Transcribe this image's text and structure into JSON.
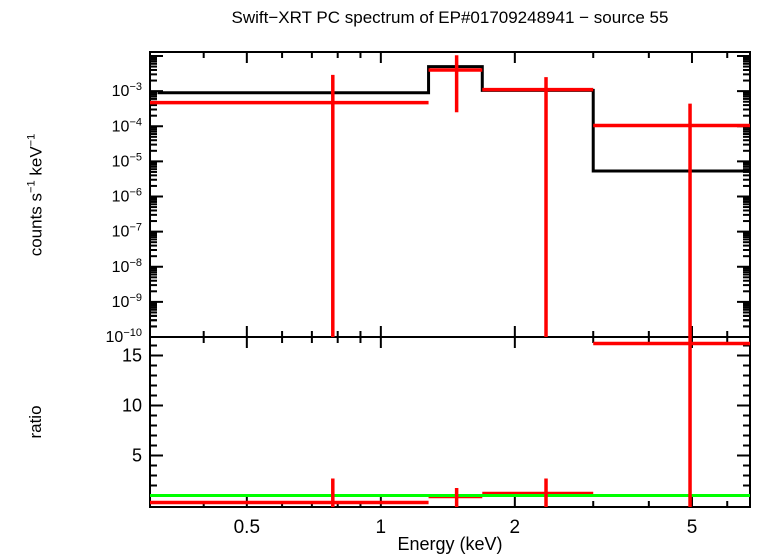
{
  "title": "Swift−XRT PC spectrum of EP#01709248941 − source 55",
  "colors": {
    "background": "#ffffff",
    "frame": "#000000",
    "model": "#000000",
    "data": "#ff0000",
    "reference": "#00ff00"
  },
  "axes": {
    "x_label": "Energy (keV)",
    "y_top_label": {
      "prefix": "counts s",
      "sup1": "−1",
      "mid": " keV",
      "sup2": "−1"
    },
    "y_bottom_label": "ratio",
    "x_tick_values": [
      0.5,
      1,
      2,
      5
    ],
    "x_tick_labels": [
      "0.5",
      "1",
      "2",
      "5"
    ],
    "x_minor_ticks": [
      0.4,
      0.6,
      0.7,
      0.8,
      0.9,
      3,
      4,
      6
    ],
    "y_top_tick_exponents": [
      -3,
      -4,
      -5,
      -6,
      -7,
      -8,
      -9,
      -10
    ],
    "y_top_unlabeled_decade_exponents": [
      -2
    ],
    "y_bottom_tick_values": [
      5,
      10,
      15
    ],
    "y_bottom_tick_labels": [
      "5",
      "10",
      "15"
    ],
    "y_bottom_minor_step": 1
  },
  "chart_data": [
    {
      "type": "line",
      "panel": "spectrum",
      "description": "stepped model histogram with data points and error bars",
      "xscale": "log",
      "yscale": "log",
      "xlabel": "Energy (keV)",
      "ylabel": "counts s−1 keV−1",
      "xlim": [
        0.303,
        6.75
      ],
      "ylim": [
        1e-10,
        0.013
      ],
      "grid": false,
      "model_step": {
        "color": "#000000",
        "bin_edges_keV": [
          0.315,
          1.28,
          1.69,
          3.0,
          6.75
        ],
        "values": [
          0.0009,
          0.005,
          0.00105,
          5.3e-06
        ]
      },
      "data_points": {
        "color": "#ff0000",
        "points": [
          {
            "x": 0.78,
            "xlo": 0.303,
            "xhi": 1.28,
            "y": 0.00047,
            "ylo": 1e-10,
            "yhi": 0.0029
          },
          {
            "x": 1.48,
            "xlo": 1.28,
            "xhi": 1.69,
            "y": 0.004,
            "ylo": 0.00025,
            "yhi": 0.0105
          },
          {
            "x": 2.35,
            "xlo": 1.69,
            "xhi": 3.0,
            "y": 0.0011,
            "ylo": 1e-10,
            "yhi": 0.0025
          },
          {
            "x": 4.95,
            "xlo": 3.0,
            "xhi": 6.75,
            "y": 0.000105,
            "ylo": 1e-10,
            "yhi": 0.00044
          }
        ]
      }
    },
    {
      "type": "scatter",
      "panel": "ratio",
      "description": "data/model ratio with error bars and unity reference line",
      "xscale": "log",
      "yscale": "linear",
      "xlabel": "Energy (keV)",
      "ylabel": "ratio",
      "xlim": [
        0.303,
        6.75
      ],
      "ylim": [
        -0.15,
        16.85
      ],
      "grid": false,
      "reference_line": {
        "y": 1,
        "color": "#00ff00"
      },
      "points": [
        {
          "x": 0.78,
          "xlo": 0.303,
          "xhi": 1.28,
          "y": 0.3,
          "ylo": -2.2,
          "yhi": 2.7
        },
        {
          "x": 1.48,
          "xlo": 1.28,
          "xhi": 1.69,
          "y": 0.9,
          "ylo": -0.3,
          "yhi": 1.75
        },
        {
          "x": 2.35,
          "xlo": 1.69,
          "xhi": 3.0,
          "y": 1.2,
          "ylo": -0.9,
          "yhi": 2.7
        },
        {
          "x": 4.95,
          "xlo": 3.0,
          "xhi": 6.75,
          "y": 16.2,
          "ylo": -20,
          "yhi": 30
        }
      ]
    }
  ]
}
